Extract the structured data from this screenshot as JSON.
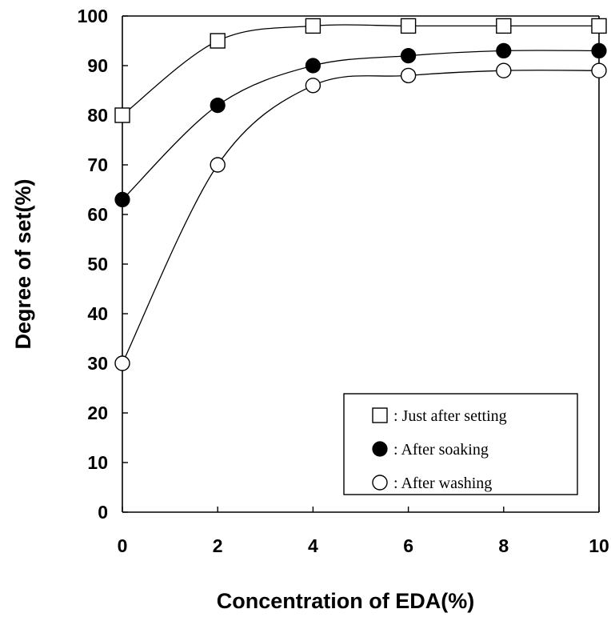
{
  "chart_data": {
    "type": "line",
    "title": "",
    "xlabel": "Concentration of EDA(%)",
    "ylabel": "Degree of set(%)",
    "xlim": [
      0,
      10
    ],
    "ylim": [
      0,
      100
    ],
    "xticks": [
      0,
      2,
      4,
      6,
      8,
      10
    ],
    "yticks": [
      0,
      10,
      20,
      30,
      40,
      50,
      60,
      70,
      80,
      90,
      100
    ],
    "grid": false,
    "legend_position": "bottom-right",
    "x": [
      0,
      2,
      4,
      6,
      8,
      10
    ],
    "series": [
      {
        "name": ": Just after setting",
        "marker": "open-square",
        "values": [
          80,
          95,
          98,
          98,
          98,
          98
        ]
      },
      {
        "name": ": After soaking",
        "marker": "filled-circle",
        "values": [
          63,
          82,
          90,
          92,
          93,
          93
        ]
      },
      {
        "name": ": After washing",
        "marker": "open-circle",
        "values": [
          30,
          70,
          86,
          88,
          89,
          89
        ]
      }
    ]
  }
}
